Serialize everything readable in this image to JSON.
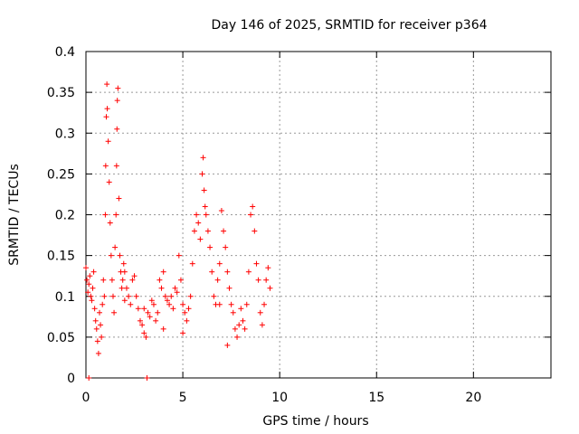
{
  "chart_data": {
    "type": "scatter",
    "title": "Day 146 of 2025, SRMTID for receiver p364",
    "xlabel": "GPS time / hours",
    "ylabel": "SRMTID / TECUs",
    "xlim": [
      0,
      24
    ],
    "ylim": [
      0,
      0.4
    ],
    "xticks": [
      0,
      5,
      10,
      15,
      20
    ],
    "yticks": [
      0,
      0.05,
      0.1,
      0.15,
      0.2,
      0.25,
      0.3,
      0.35,
      0.4
    ],
    "xtick_labels": [
      "0",
      "5",
      "10",
      "15",
      "20"
    ],
    "ytick_labels": [
      "0",
      "0.05",
      "0.1",
      "0.15",
      "0.2",
      "0.25",
      "0.3",
      "0.35",
      "0.4"
    ],
    "grid": true,
    "marker": "+",
    "color": "#ff0000",
    "series": [
      {
        "name": "SRMTID",
        "points": [
          [
            0.0,
            0.135
          ],
          [
            0.05,
            0.12
          ],
          [
            0.1,
            0.105
          ],
          [
            0.15,
            0.115
          ],
          [
            0.2,
            0.125
          ],
          [
            0.25,
            0.1
          ],
          [
            0.3,
            0.095
          ],
          [
            0.35,
            0.11
          ],
          [
            0.4,
            0.13
          ],
          [
            0.45,
            0.085
          ],
          [
            0.5,
            0.07
          ],
          [
            0.55,
            0.06
          ],
          [
            0.6,
            0.045
          ],
          [
            0.65,
            0.03
          ],
          [
            0.7,
            0.08
          ],
          [
            0.75,
            0.065
          ],
          [
            0.8,
            0.05
          ],
          [
            0.85,
            0.09
          ],
          [
            0.9,
            0.12
          ],
          [
            0.95,
            0.1
          ],
          [
            1.0,
            0.2
          ],
          [
            1.02,
            0.26
          ],
          [
            1.05,
            0.32
          ],
          [
            1.08,
            0.36
          ],
          [
            1.1,
            0.33
          ],
          [
            1.15,
            0.29
          ],
          [
            1.2,
            0.24
          ],
          [
            1.25,
            0.19
          ],
          [
            1.3,
            0.15
          ],
          [
            1.35,
            0.12
          ],
          [
            1.4,
            0.1
          ],
          [
            1.45,
            0.08
          ],
          [
            1.5,
            0.16
          ],
          [
            1.55,
            0.2
          ],
          [
            1.58,
            0.26
          ],
          [
            1.6,
            0.305
          ],
          [
            1.62,
            0.34
          ],
          [
            1.65,
            0.355
          ],
          [
            1.7,
            0.22
          ],
          [
            1.75,
            0.15
          ],
          [
            1.8,
            0.13
          ],
          [
            1.85,
            0.11
          ],
          [
            1.9,
            0.12
          ],
          [
            1.95,
            0.14
          ],
          [
            2.0,
            0.13
          ],
          [
            2.1,
            0.11
          ],
          [
            2.2,
            0.1
          ],
          [
            2.3,
            0.09
          ],
          [
            2.4,
            0.12
          ],
          [
            2.5,
            0.125
          ],
          [
            2.6,
            0.1
          ],
          [
            2.7,
            0.085
          ],
          [
            2.8,
            0.07
          ],
          [
            2.9,
            0.065
          ],
          [
            3.0,
            0.055
          ],
          [
            3.1,
            0.05
          ],
          [
            3.15,
            0.0
          ],
          [
            3.2,
            0.08
          ],
          [
            3.3,
            0.075
          ],
          [
            3.4,
            0.095
          ],
          [
            3.5,
            0.09
          ],
          [
            3.6,
            0.07
          ],
          [
            3.7,
            0.08
          ],
          [
            3.8,
            0.12
          ],
          [
            3.9,
            0.11
          ],
          [
            4.0,
            0.13
          ],
          [
            4.1,
            0.1
          ],
          [
            4.2,
            0.095
          ],
          [
            4.3,
            0.09
          ],
          [
            4.4,
            0.1
          ],
          [
            4.5,
            0.085
          ],
          [
            4.6,
            0.11
          ],
          [
            4.7,
            0.105
          ],
          [
            4.8,
            0.15
          ],
          [
            4.9,
            0.12
          ],
          [
            5.0,
            0.09
          ],
          [
            5.1,
            0.08
          ],
          [
            5.2,
            0.07
          ],
          [
            5.3,
            0.085
          ],
          [
            5.4,
            0.1
          ],
          [
            5.5,
            0.14
          ],
          [
            5.6,
            0.18
          ],
          [
            5.7,
            0.2
          ],
          [
            5.8,
            0.19
          ],
          [
            5.9,
            0.17
          ],
          [
            6.0,
            0.25
          ],
          [
            6.05,
            0.27
          ],
          [
            6.1,
            0.23
          ],
          [
            6.15,
            0.21
          ],
          [
            6.2,
            0.2
          ],
          [
            6.3,
            0.18
          ],
          [
            6.4,
            0.16
          ],
          [
            6.5,
            0.13
          ],
          [
            6.6,
            0.1
          ],
          [
            6.7,
            0.09
          ],
          [
            6.8,
            0.12
          ],
          [
            6.9,
            0.14
          ],
          [
            7.0,
            0.205
          ],
          [
            7.1,
            0.18
          ],
          [
            7.2,
            0.16
          ],
          [
            7.3,
            0.13
          ],
          [
            7.4,
            0.11
          ],
          [
            7.5,
            0.09
          ],
          [
            7.6,
            0.08
          ],
          [
            7.7,
            0.06
          ],
          [
            7.8,
            0.05
          ],
          [
            7.9,
            0.065
          ],
          [
            8.0,
            0.085
          ],
          [
            8.1,
            0.07
          ],
          [
            8.2,
            0.06
          ],
          [
            8.3,
            0.09
          ],
          [
            8.4,
            0.13
          ],
          [
            8.5,
            0.2
          ],
          [
            8.6,
            0.21
          ],
          [
            8.7,
            0.18
          ],
          [
            8.8,
            0.14
          ],
          [
            8.9,
            0.12
          ],
          [
            9.0,
            0.08
          ],
          [
            9.1,
            0.065
          ],
          [
            9.2,
            0.09
          ],
          [
            9.3,
            0.12
          ],
          [
            9.4,
            0.135
          ],
          [
            9.5,
            0.11
          ],
          [
            0.15,
            0.0
          ],
          [
            6.9,
            0.09
          ],
          [
            2.0,
            0.095
          ],
          [
            3.0,
            0.085
          ],
          [
            4.0,
            0.06
          ],
          [
            5.0,
            0.055
          ],
          [
            7.3,
            0.04
          ]
        ]
      }
    ]
  }
}
